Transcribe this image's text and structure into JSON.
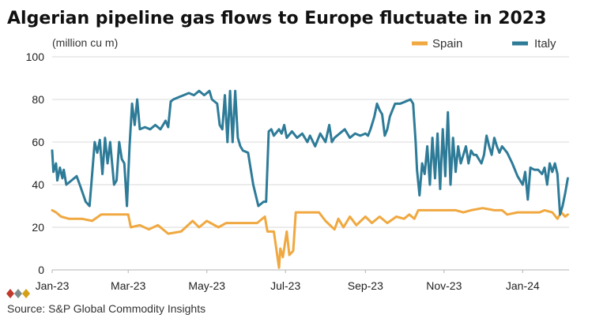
{
  "chart_data": {
    "type": "line",
    "title": "Algerian pipeline gas flows to Europe fluctuate in 2023",
    "unit_label": "(million cu m)",
    "source": "Source: S&P Global Commodity Insights",
    "xlim": [
      "2023-01-01",
      "2024-02-06"
    ],
    "ylim": [
      0,
      100
    ],
    "yticks": [
      0,
      20,
      40,
      60,
      80,
      100
    ],
    "xticks": [
      {
        "label": "Jan-23",
        "date": "2023-01-01"
      },
      {
        "label": "Mar-23",
        "date": "2023-03-01"
      },
      {
        "label": "May-23",
        "date": "2023-05-01"
      },
      {
        "label": "Jul-23",
        "date": "2023-07-01"
      },
      {
        "label": "Sep-23",
        "date": "2023-09-01"
      },
      {
        "label": "Nov-23",
        "date": "2023-11-01"
      },
      {
        "label": "Jan-24",
        "date": "2024-01-01"
      }
    ],
    "grid": true,
    "legend_position": "top-right",
    "series": [
      {
        "name": "Spain",
        "color": "#f0a840",
        "points": [
          [
            "2023-01-01",
            28
          ],
          [
            "2023-01-04",
            27
          ],
          [
            "2023-01-08",
            25
          ],
          [
            "2023-01-14",
            24
          ],
          [
            "2023-01-24",
            24
          ],
          [
            "2023-02-01",
            23
          ],
          [
            "2023-02-08",
            26
          ],
          [
            "2023-02-20",
            26
          ],
          [
            "2023-03-01",
            26
          ],
          [
            "2023-03-03",
            20
          ],
          [
            "2023-03-10",
            21
          ],
          [
            "2023-03-17",
            19
          ],
          [
            "2023-03-24",
            21
          ],
          [
            "2023-04-01",
            17
          ],
          [
            "2023-04-11",
            18
          ],
          [
            "2023-04-20",
            23
          ],
          [
            "2023-04-25",
            20
          ],
          [
            "2023-05-01",
            23
          ],
          [
            "2023-05-10",
            20
          ],
          [
            "2023-05-16",
            22
          ],
          [
            "2023-05-25",
            22
          ],
          [
            "2023-06-01",
            22
          ],
          [
            "2023-06-09",
            22
          ],
          [
            "2023-06-15",
            25
          ],
          [
            "2023-06-17",
            18
          ],
          [
            "2023-06-22",
            18
          ],
          [
            "2023-06-26",
            1
          ],
          [
            "2023-06-27",
            10
          ],
          [
            "2023-06-29",
            6
          ],
          [
            "2023-07-02",
            18
          ],
          [
            "2023-07-04",
            7
          ],
          [
            "2023-07-07",
            9
          ],
          [
            "2023-07-09",
            27
          ],
          [
            "2023-07-20",
            27
          ],
          [
            "2023-07-27",
            27
          ],
          [
            "2023-08-01",
            23
          ],
          [
            "2023-08-08",
            19
          ],
          [
            "2023-08-11",
            24
          ],
          [
            "2023-08-15",
            20
          ],
          [
            "2023-08-20",
            25
          ],
          [
            "2023-08-25",
            21
          ],
          [
            "2023-09-01",
            25
          ],
          [
            "2023-09-06",
            22
          ],
          [
            "2023-09-12",
            25
          ],
          [
            "2023-09-18",
            22
          ],
          [
            "2023-09-25",
            25
          ],
          [
            "2023-10-01",
            24
          ],
          [
            "2023-10-05",
            26
          ],
          [
            "2023-10-09",
            24
          ],
          [
            "2023-10-12",
            28
          ],
          [
            "2023-10-20",
            28
          ],
          [
            "2023-11-01",
            28
          ],
          [
            "2023-11-10",
            28
          ],
          [
            "2023-11-16",
            27
          ],
          [
            "2023-11-22",
            28
          ],
          [
            "2023-12-01",
            29
          ],
          [
            "2023-12-10",
            28
          ],
          [
            "2023-12-16",
            28
          ],
          [
            "2023-12-20",
            26
          ],
          [
            "2023-12-28",
            27
          ],
          [
            "2024-01-05",
            27
          ],
          [
            "2024-01-14",
            27
          ],
          [
            "2024-01-18",
            28
          ],
          [
            "2024-01-24",
            27
          ],
          [
            "2024-01-28",
            24
          ],
          [
            "2024-01-31",
            27
          ],
          [
            "2024-02-03",
            25
          ],
          [
            "2024-02-05",
            26
          ]
        ]
      },
      {
        "name": "Italy",
        "color": "#2e7b98",
        "points": [
          [
            "2023-01-01",
            56
          ],
          [
            "2023-01-02",
            46
          ],
          [
            "2023-01-04",
            50
          ],
          [
            "2023-01-05",
            42
          ],
          [
            "2023-01-07",
            48
          ],
          [
            "2023-01-09",
            43
          ],
          [
            "2023-01-10",
            47
          ],
          [
            "2023-01-12",
            40
          ],
          [
            "2023-01-16",
            42
          ],
          [
            "2023-01-20",
            44
          ],
          [
            "2023-01-23",
            39
          ],
          [
            "2023-01-27",
            32
          ],
          [
            "2023-01-30",
            30
          ],
          [
            "2023-02-01",
            45
          ],
          [
            "2023-02-03",
            60
          ],
          [
            "2023-02-05",
            55
          ],
          [
            "2023-02-07",
            61
          ],
          [
            "2023-02-09",
            45
          ],
          [
            "2023-02-11",
            62
          ],
          [
            "2023-02-13",
            50
          ],
          [
            "2023-02-15",
            60
          ],
          [
            "2023-02-18",
            40
          ],
          [
            "2023-02-20",
            42
          ],
          [
            "2023-02-22",
            60
          ],
          [
            "2023-02-24",
            52
          ],
          [
            "2023-02-26",
            50
          ],
          [
            "2023-02-28",
            30
          ],
          [
            "2023-03-02",
            58
          ],
          [
            "2023-03-04",
            78
          ],
          [
            "2023-03-06",
            68
          ],
          [
            "2023-03-08",
            80
          ],
          [
            "2023-03-10",
            66
          ],
          [
            "2023-03-14",
            67
          ],
          [
            "2023-03-18",
            66
          ],
          [
            "2023-03-22",
            68
          ],
          [
            "2023-03-26",
            66
          ],
          [
            "2023-03-30",
            70
          ],
          [
            "2023-04-01",
            67
          ],
          [
            "2023-04-03",
            79
          ],
          [
            "2023-04-05",
            80
          ],
          [
            "2023-04-09",
            81
          ],
          [
            "2023-04-13",
            82
          ],
          [
            "2023-04-17",
            83
          ],
          [
            "2023-04-21",
            82
          ],
          [
            "2023-04-25",
            84
          ],
          [
            "2023-04-29",
            82
          ],
          [
            "2023-05-03",
            84
          ],
          [
            "2023-05-05",
            80
          ],
          [
            "2023-05-09",
            78
          ],
          [
            "2023-05-11",
            68
          ],
          [
            "2023-05-13",
            66
          ],
          [
            "2023-05-15",
            82
          ],
          [
            "2023-05-17",
            60
          ],
          [
            "2023-05-19",
            84
          ],
          [
            "2023-05-21",
            60
          ],
          [
            "2023-05-23",
            84
          ],
          [
            "2023-05-25",
            62
          ],
          [
            "2023-05-27",
            58
          ],
          [
            "2023-05-29",
            56
          ],
          [
            "2023-06-02",
            55
          ],
          [
            "2023-06-06",
            40
          ],
          [
            "2023-06-10",
            30
          ],
          [
            "2023-06-14",
            32
          ],
          [
            "2023-06-16",
            32
          ],
          [
            "2023-06-18",
            65
          ],
          [
            "2023-06-20",
            66
          ],
          [
            "2023-06-22",
            63
          ],
          [
            "2023-06-26",
            66
          ],
          [
            "2023-06-28",
            64
          ],
          [
            "2023-06-30",
            68
          ],
          [
            "2023-07-02",
            62
          ],
          [
            "2023-07-06",
            65
          ],
          [
            "2023-07-10",
            62
          ],
          [
            "2023-07-14",
            64
          ],
          [
            "2023-07-18",
            60
          ],
          [
            "2023-07-20",
            63
          ],
          [
            "2023-07-24",
            58
          ],
          [
            "2023-07-28",
            64
          ],
          [
            "2023-08-01",
            60
          ],
          [
            "2023-08-04",
            68
          ],
          [
            "2023-08-06",
            60
          ],
          [
            "2023-08-08",
            62
          ],
          [
            "2023-08-12",
            64
          ],
          [
            "2023-08-16",
            66
          ],
          [
            "2023-08-20",
            62
          ],
          [
            "2023-08-24",
            64
          ],
          [
            "2023-08-28",
            63
          ],
          [
            "2023-09-01",
            64
          ],
          [
            "2023-09-03",
            63
          ],
          [
            "2023-09-05",
            66
          ],
          [
            "2023-09-07",
            70
          ],
          [
            "2023-09-08",
            72
          ],
          [
            "2023-09-10",
            78
          ],
          [
            "2023-09-12",
            75
          ],
          [
            "2023-09-14",
            73
          ],
          [
            "2023-09-16",
            63
          ],
          [
            "2023-09-18",
            66
          ],
          [
            "2023-09-20",
            72
          ],
          [
            "2023-09-24",
            78
          ],
          [
            "2023-09-28",
            78
          ],
          [
            "2023-10-02",
            79
          ],
          [
            "2023-10-06",
            80
          ],
          [
            "2023-10-08",
            78
          ],
          [
            "2023-10-10",
            60
          ],
          [
            "2023-10-11",
            47
          ],
          [
            "2023-10-13",
            35
          ],
          [
            "2023-10-15",
            50
          ],
          [
            "2023-10-17",
            45
          ],
          [
            "2023-10-19",
            58
          ],
          [
            "2023-10-21",
            40
          ],
          [
            "2023-10-23",
            62
          ],
          [
            "2023-10-25",
            43
          ],
          [
            "2023-10-27",
            64
          ],
          [
            "2023-10-29",
            38
          ],
          [
            "2023-10-31",
            66
          ],
          [
            "2023-11-02",
            44
          ],
          [
            "2023-11-04",
            74
          ],
          [
            "2023-11-06",
            40
          ],
          [
            "2023-11-08",
            62
          ],
          [
            "2023-11-10",
            46
          ],
          [
            "2023-11-12",
            58
          ],
          [
            "2023-11-14",
            50
          ],
          [
            "2023-11-18",
            58
          ],
          [
            "2023-11-20",
            50
          ],
          [
            "2023-11-22",
            56
          ],
          [
            "2023-11-24",
            54
          ],
          [
            "2023-11-26",
            54
          ],
          [
            "2023-11-28",
            52
          ],
          [
            "2023-11-30",
            50
          ],
          [
            "2023-12-02",
            54
          ],
          [
            "2023-12-04",
            63
          ],
          [
            "2023-12-06",
            58
          ],
          [
            "2023-12-08",
            54
          ],
          [
            "2023-12-10",
            62
          ],
          [
            "2023-12-12",
            58
          ],
          [
            "2023-12-14",
            55
          ],
          [
            "2023-12-16",
            58
          ],
          [
            "2023-12-20",
            55
          ],
          [
            "2023-12-24",
            50
          ],
          [
            "2023-12-28",
            44
          ],
          [
            "2024-01-01",
            40
          ],
          [
            "2024-01-03",
            46
          ],
          [
            "2024-01-05",
            33
          ],
          [
            "2024-01-07",
            48
          ],
          [
            "2024-01-10",
            47
          ],
          [
            "2024-01-13",
            47
          ],
          [
            "2024-01-16",
            45
          ],
          [
            "2024-01-18",
            48
          ],
          [
            "2024-01-20",
            40
          ],
          [
            "2024-01-22",
            50
          ],
          [
            "2024-01-24",
            46
          ],
          [
            "2024-01-26",
            50
          ],
          [
            "2024-01-28",
            45
          ],
          [
            "2024-01-30",
            26
          ],
          [
            "2024-02-01",
            30
          ],
          [
            "2024-02-03",
            36
          ],
          [
            "2024-02-05",
            43
          ]
        ]
      }
    ]
  }
}
